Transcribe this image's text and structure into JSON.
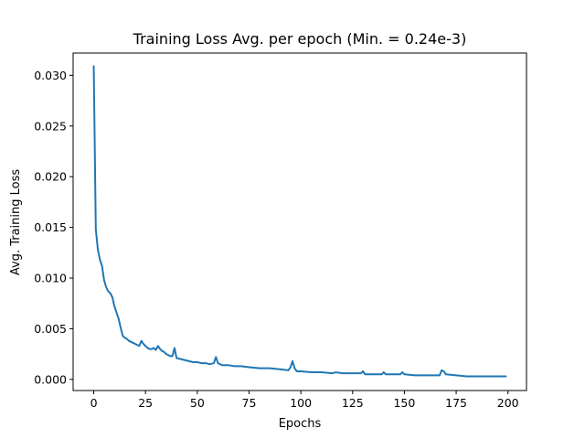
{
  "chart_data": {
    "type": "line",
    "title": "Training Loss Avg. per epoch (Min. =  0.24e-3)",
    "xlabel": "Epochs",
    "ylabel": "Avg. Training Loss",
    "xlim": [
      -9.95,
      208.95
    ],
    "ylim": [
      -0.0011,
      0.0322
    ],
    "xticks": [
      0,
      25,
      50,
      75,
      100,
      125,
      150,
      175,
      200
    ],
    "xtick_labels": [
      "0",
      "25",
      "50",
      "75",
      "100",
      "125",
      "150",
      "175",
      "200"
    ],
    "yticks": [
      0.0,
      0.005,
      0.01,
      0.015,
      0.02,
      0.025,
      0.03
    ],
    "ytick_labels": [
      "0.000",
      "0.005",
      "0.010",
      "0.015",
      "0.020",
      "0.025",
      "0.030"
    ],
    "grid": false,
    "line_color": "#1f77b4",
    "series": [
      {
        "x": [
          0,
          1,
          2,
          3,
          4,
          5,
          6,
          7,
          8,
          9,
          10,
          11,
          12,
          13,
          14,
          15,
          16,
          17,
          18,
          19,
          20,
          21,
          22,
          23,
          24,
          25,
          26,
          27,
          28,
          29,
          30,
          31,
          32,
          33,
          34,
          35,
          36,
          37,
          38,
          39,
          40,
          42,
          44,
          46,
          48,
          50,
          52,
          54,
          56,
          58,
          59,
          60,
          62,
          65,
          68,
          71,
          75,
          80,
          85,
          90,
          94,
          95,
          96,
          97,
          98,
          100,
          105,
          110,
          115,
          117,
          120,
          125,
          129,
          130,
          131,
          135,
          139,
          140,
          141,
          145,
          148,
          149,
          150,
          155,
          160,
          165,
          167,
          168,
          169,
          170,
          175,
          180,
          185,
          190,
          195,
          199
        ],
        "y": [
          0.0309,
          0.0148,
          0.0128,
          0.0118,
          0.0112,
          0.0098,
          0.0091,
          0.0087,
          0.0085,
          0.0081,
          0.0072,
          0.0066,
          0.006,
          0.0051,
          0.0043,
          0.0041,
          0.004,
          0.0038,
          0.0037,
          0.0036,
          0.0035,
          0.0034,
          0.0033,
          0.0038,
          0.0035,
          0.0033,
          0.0031,
          0.003,
          0.003,
          0.0031,
          0.0029,
          0.0033,
          0.003,
          0.0028,
          0.0027,
          0.0025,
          0.0024,
          0.0023,
          0.0023,
          0.0031,
          0.0021,
          0.002,
          0.0019,
          0.0018,
          0.0017,
          0.0017,
          0.0016,
          0.0016,
          0.0015,
          0.0016,
          0.0022,
          0.0016,
          0.0014,
          0.0014,
          0.0013,
          0.0013,
          0.0012,
          0.0011,
          0.0011,
          0.001,
          0.0009,
          0.0012,
          0.0018,
          0.0011,
          0.0008,
          0.0008,
          0.0007,
          0.0007,
          0.0006,
          0.0007,
          0.0006,
          0.0006,
          0.0006,
          0.0008,
          0.0005,
          0.0005,
          0.0005,
          0.0007,
          0.0005,
          0.0005,
          0.0005,
          0.0007,
          0.0005,
          0.0004,
          0.0004,
          0.0004,
          0.0004,
          0.0009,
          0.0008,
          0.0005,
          0.0004,
          0.0003,
          0.0003,
          0.0003,
          0.0003,
          0.0003
        ]
      }
    ]
  }
}
